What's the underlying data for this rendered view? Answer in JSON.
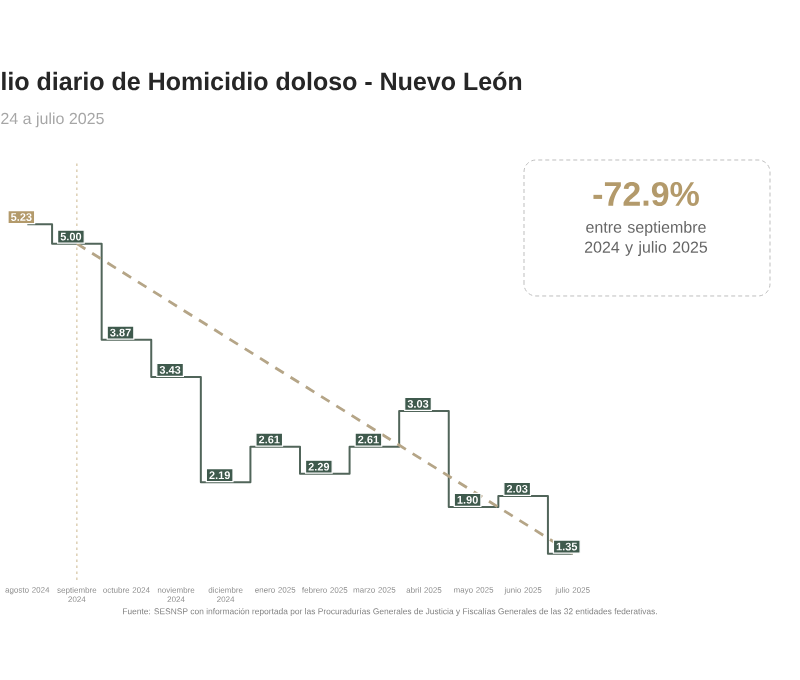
{
  "chart_data": {
    "type": "step",
    "title": "lio diario de Homicidio doloso - Nuevo León",
    "subtitle": "24 a julio 2025",
    "categories": [
      "agosto 2024",
      "septiembre 2024",
      "octubre 2024",
      "noviembre 2024",
      "diciembre 2024",
      "enero 2025",
      "febrero 2025",
      "marzo 2025",
      "abril 2025",
      "mayo 2025",
      "junio 2025",
      "julio 2025"
    ],
    "series": [
      {
        "color": "#51655a",
        "values": [
          5.23,
          5.0,
          3.87,
          3.43,
          2.19,
          2.61,
          2.29,
          2.61,
          3.03,
          1.9,
          2.03,
          1.35
        ],
        "value_labels": [
          "5.23",
          "5.00",
          "3.87",
          "3.43",
          "2.19",
          "2.61",
          "2.29",
          "2.61",
          "3.03",
          "1.90",
          "2.03",
          "1.35"
        ],
        "colors": [
          "#b39a6b",
          "#3f5a4d",
          "#3f5a4d",
          "#3f5a4d",
          "#3f5a4d",
          "#3f5a4d",
          "#3f5a4d",
          "#3f5a4d",
          "#3f5a4d",
          "#3f5a4d",
          "#3f5a4d",
          "#3f5a4d"
        ]
      },
      {
        "type": "line",
        "color": "#b5a587",
        "line_style": "dashed",
        "x": [
          "septiembre 2024",
          "julio 2025"
        ],
        "values": [
          5.0,
          1.35
        ]
      }
    ],
    "ref_lines": [
      {
        "axis": "x",
        "value": "septiembre 2024",
        "color": "#d4c3a0",
        "line_style": "dotted"
      }
    ],
    "annotations": [
      "-72.9%",
      "entre septiembre 2024 y julio 2025",
      "Fuente: SESNSP con información reportada por las Procuradurías Generales de Justicia y Fiscalías Generales de las 32 entidades federativas."
    ],
    "grid": false,
    "marker": "none"
  }
}
